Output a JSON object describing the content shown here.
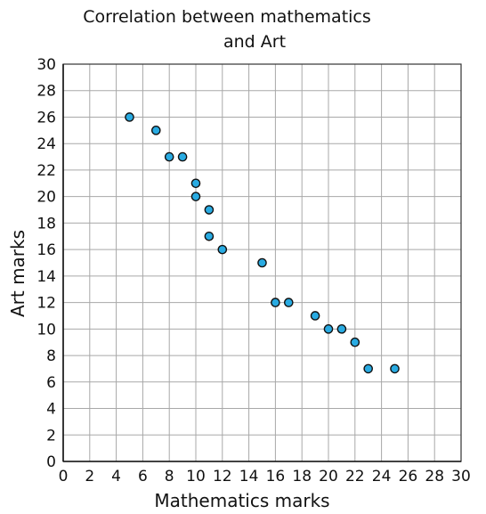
{
  "chart_data": {
    "type": "scatter",
    "title_lines": [
      "Correlation between mathematics",
      "and Art"
    ],
    "xlabel": "Mathematics marks",
    "ylabel": "Art marks",
    "xlim": [
      0,
      30
    ],
    "ylim": [
      0,
      30
    ],
    "x_ticks": [
      0,
      2,
      4,
      6,
      8,
      10,
      12,
      14,
      16,
      18,
      20,
      22,
      24,
      26,
      28,
      30
    ],
    "y_ticks": [
      0,
      2,
      4,
      6,
      8,
      10,
      12,
      14,
      16,
      18,
      20,
      22,
      24,
      26,
      28,
      30
    ],
    "grid": true,
    "grid_step": 2,
    "point_color": "#29abe2",
    "points": [
      {
        "x": 5,
        "y": 26
      },
      {
        "x": 7,
        "y": 25
      },
      {
        "x": 8,
        "y": 23
      },
      {
        "x": 9,
        "y": 23
      },
      {
        "x": 10,
        "y": 21
      },
      {
        "x": 10,
        "y": 20
      },
      {
        "x": 11,
        "y": 19
      },
      {
        "x": 11,
        "y": 17
      },
      {
        "x": 12,
        "y": 16
      },
      {
        "x": 15,
        "y": 15
      },
      {
        "x": 16,
        "y": 12
      },
      {
        "x": 17,
        "y": 12
      },
      {
        "x": 19,
        "y": 11
      },
      {
        "x": 20,
        "y": 10
      },
      {
        "x": 21,
        "y": 10
      },
      {
        "x": 22,
        "y": 9
      },
      {
        "x": 23,
        "y": 7
      },
      {
        "x": 25,
        "y": 7
      }
    ]
  }
}
